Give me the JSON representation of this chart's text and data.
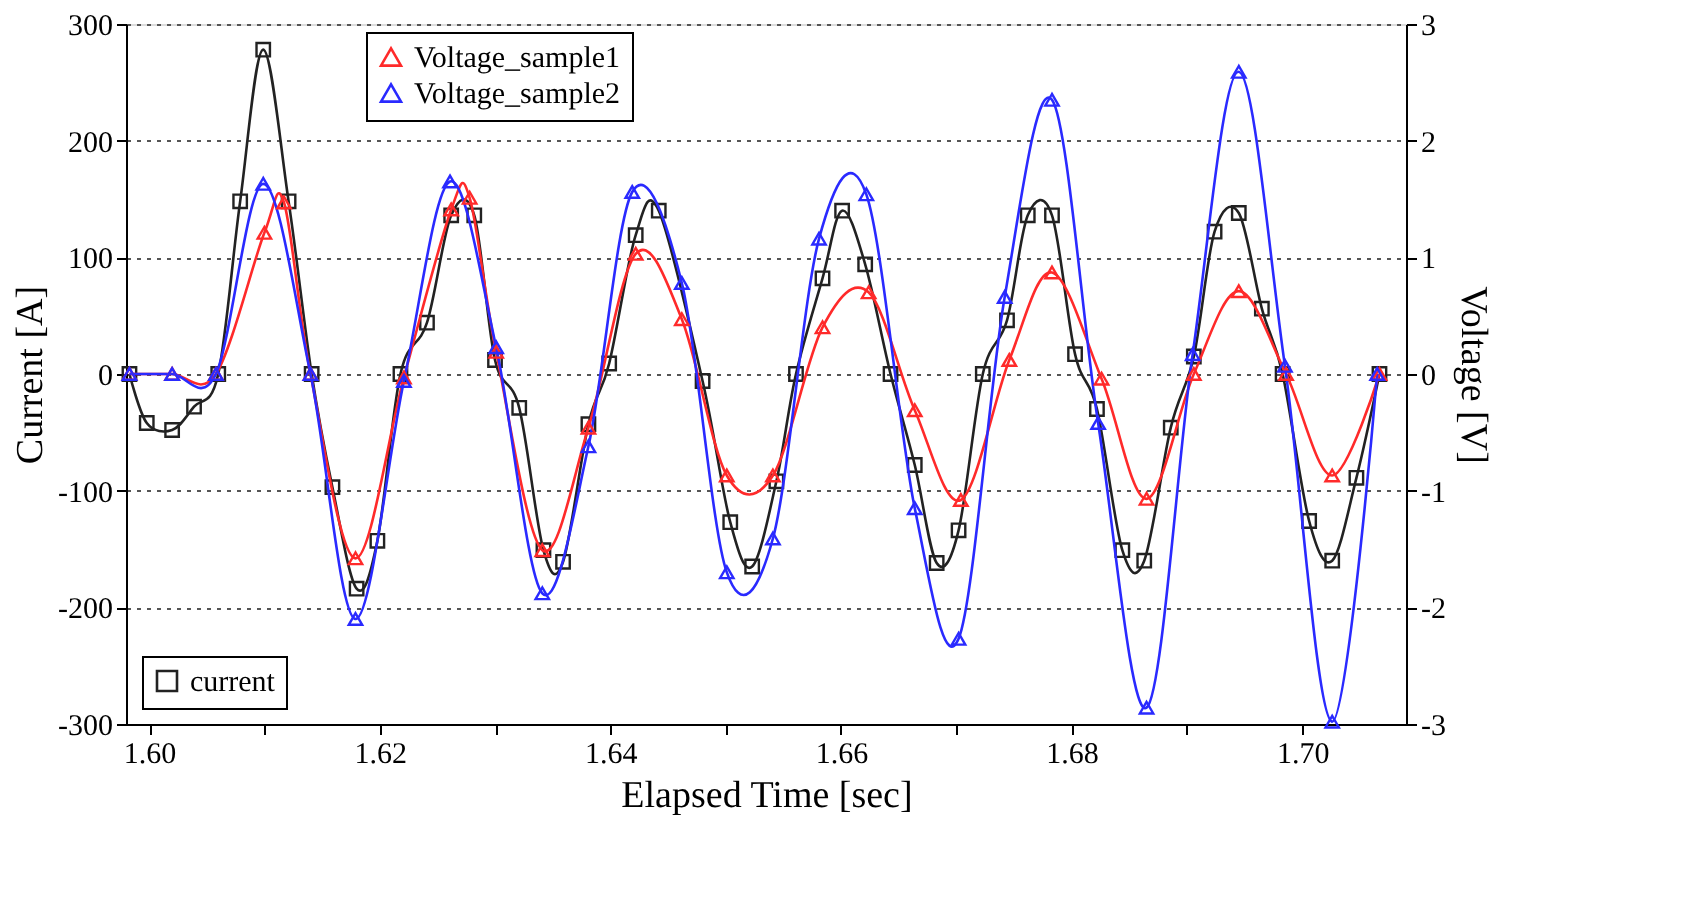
{
  "chart_data": {
    "type": "line",
    "xlabel": "Elapsed Time [sec]",
    "ylabel": "Current [A]",
    "y2label": "Voltage [V]",
    "xlim": [
      1.598,
      1.709
    ],
    "xticks": [
      {
        "value": 1.6,
        "label": "1.60"
      },
      {
        "value": 1.61,
        "label": null
      },
      {
        "value": 1.62,
        "label": "1.62"
      },
      {
        "value": 1.63,
        "label": null
      },
      {
        "value": 1.64,
        "label": "1.64"
      },
      {
        "value": 1.65,
        "label": null
      },
      {
        "value": 1.66,
        "label": "1.66"
      },
      {
        "value": 1.67,
        "label": null
      },
      {
        "value": 1.68,
        "label": "1.68"
      },
      {
        "value": 1.69,
        "label": null
      },
      {
        "value": 1.7,
        "label": "1.70"
      }
    ],
    "ylim": [
      -300,
      300
    ],
    "yticks": [
      -300,
      -200,
      -100,
      0,
      100,
      200,
      300
    ],
    "y2lim": [
      -3,
      3
    ],
    "y2ticks": [
      -3,
      -2,
      -1,
      0,
      1,
      2,
      3
    ],
    "grid": "y",
    "legend": "top",
    "line_style": "solid",
    "series": [
      {
        "name": "current",
        "color": "#222222",
        "marker": "square",
        "x": [
          1.5983,
          1.5998,
          1.602,
          1.6039,
          1.606,
          1.6079,
          1.6099,
          1.6121,
          1.6141,
          1.6159,
          1.618,
          1.6198,
          1.6218,
          1.6241,
          1.6262,
          1.6282,
          1.63,
          1.6321,
          1.6342,
          1.6359,
          1.6381,
          1.6399,
          1.6422,
          1.6442,
          1.648,
          1.6504,
          1.6523,
          1.6544,
          1.6561,
          1.6584,
          1.6601,
          1.6621,
          1.6643,
          1.6664,
          1.6683,
          1.6702,
          1.6723,
          1.6744,
          1.6762,
          1.6783,
          1.6803,
          1.6822,
          1.6844,
          1.6863,
          1.6886,
          1.6906,
          1.6924,
          1.6945,
          1.6965,
          1.6983,
          1.7006,
          1.7026,
          1.7047,
          1.7067
        ],
        "values": [
          0,
          -42,
          -48,
          -28,
          0,
          148,
          278,
          148,
          0,
          -97,
          -184,
          -143,
          0,
          44,
          136,
          136,
          12,
          -29,
          -151,
          -161,
          -43,
          9,
          119,
          140,
          -6,
          -127,
          -165,
          -92,
          0,
          82,
          140,
          94,
          0,
          -78,
          -162,
          -134,
          0,
          46,
          136,
          136,
          17,
          -30,
          -151,
          -160,
          -46,
          15,
          122,
          138,
          56,
          0,
          -126,
          -160,
          -89,
          0
        ]
      },
      {
        "name": "Voltage_sample1",
        "color": "#ff2a2a",
        "marker": "triangle",
        "axis": "y2",
        "x": [
          1.5983,
          1.602,
          1.6058,
          1.61,
          1.6117,
          1.614,
          1.6179,
          1.6221,
          1.6262,
          1.6278,
          1.6301,
          1.6341,
          1.6381,
          1.6422,
          1.6462,
          1.6501,
          1.6541,
          1.6584,
          1.6624,
          1.6664,
          1.6704,
          1.6746,
          1.6783,
          1.6826,
          1.6865,
          1.6906,
          1.6945,
          1.6986,
          1.7026,
          1.7067
        ],
        "values": [
          0,
          0,
          0,
          1.21,
          1.47,
          0,
          -1.58,
          -0.03,
          1.41,
          1.51,
          0.19,
          -1.51,
          -0.46,
          1.03,
          0.47,
          -0.87,
          -0.87,
          0.4,
          0.7,
          -0.31,
          -1.08,
          0.12,
          0.87,
          -0.04,
          -1.07,
          0,
          0.71,
          0,
          -0.87,
          0
        ]
      },
      {
        "name": "Voltage_sample2",
        "color": "#2a2aff",
        "marker": "triangle",
        "axis": "y2",
        "x": [
          1.5983,
          1.602,
          1.6058,
          1.6099,
          1.614,
          1.6179,
          1.6221,
          1.6261,
          1.6301,
          1.6341,
          1.6381,
          1.6419,
          1.6462,
          1.6501,
          1.6541,
          1.6581,
          1.6622,
          1.6664,
          1.6702,
          1.6742,
          1.6783,
          1.6823,
          1.6865,
          1.6905,
          1.6945,
          1.6985,
          1.7026,
          1.7065
        ],
        "values": [
          0,
          0,
          0,
          1.63,
          0,
          -2.1,
          -0.06,
          1.65,
          0.23,
          -1.88,
          -0.62,
          1.56,
          0.78,
          -1.7,
          -1.41,
          1.16,
          1.54,
          -1.15,
          -2.27,
          0.66,
          2.35,
          -0.42,
          -2.86,
          0.17,
          2.59,
          0.07,
          -2.98,
          0
        ]
      }
    ]
  }
}
